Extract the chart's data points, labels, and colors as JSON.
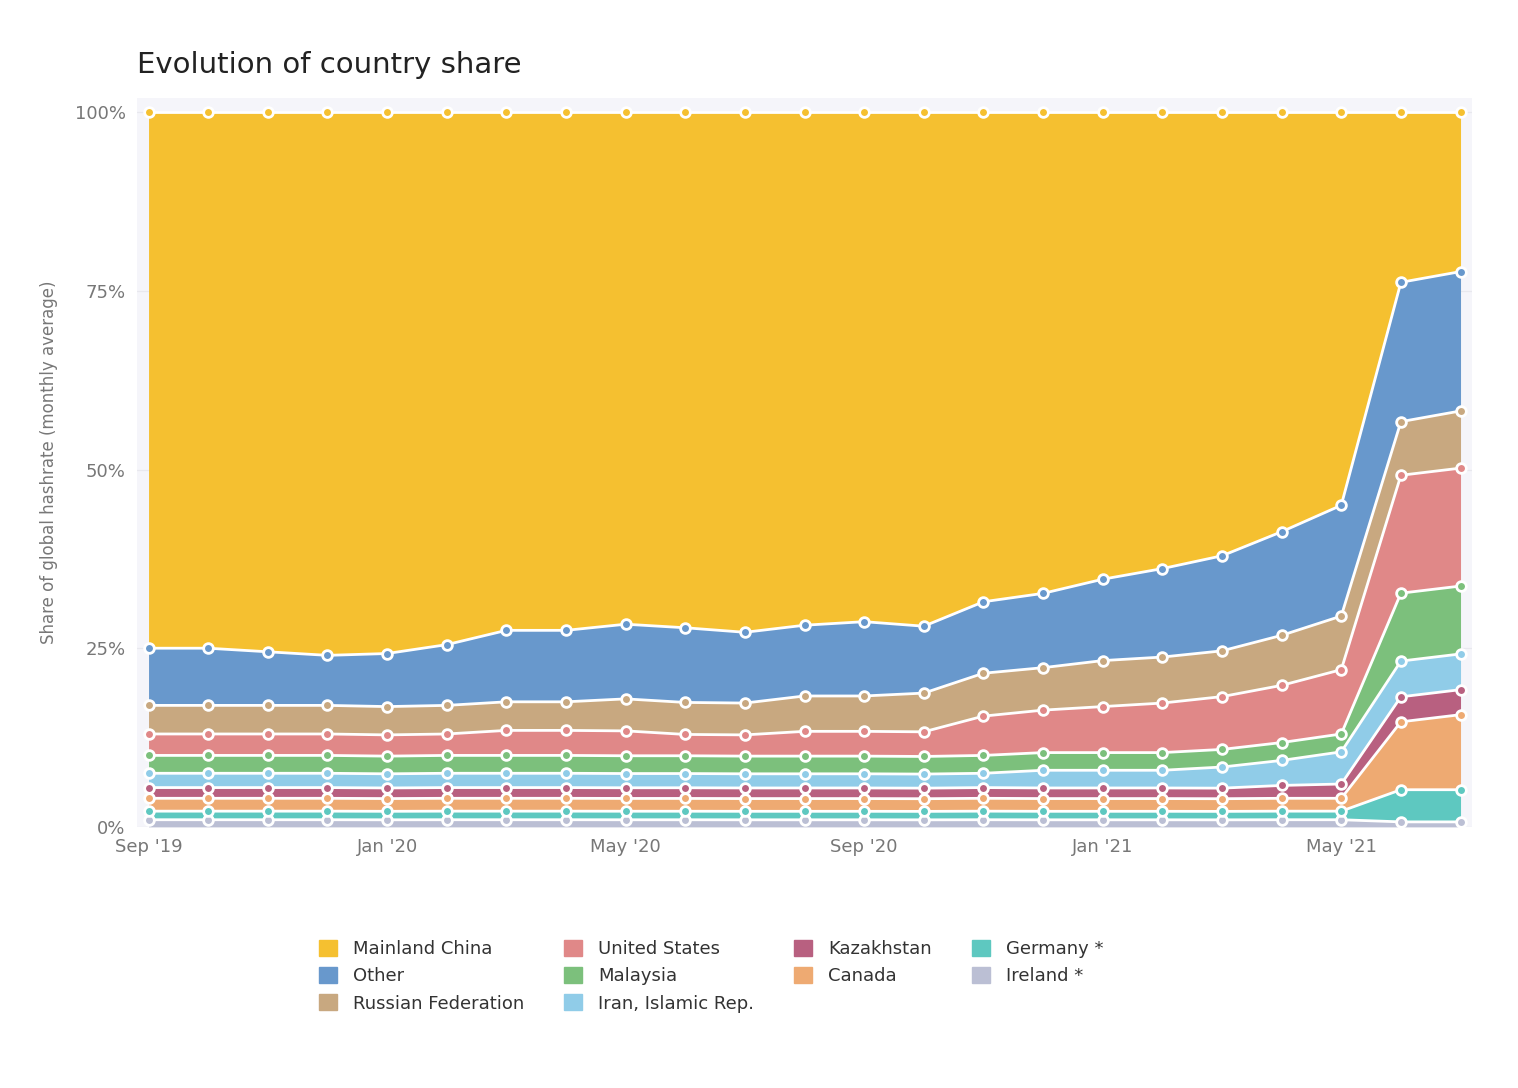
{
  "title": "Evolution of country share",
  "ylabel": "Share of global hashrate (monthly average)",
  "bg_color": "#ffffff",
  "plot_bg_color": "#f5f5fa",
  "x_tick_labels": [
    "Sep '19",
    "Jan '20",
    "May '20",
    "Sep '20",
    "Jan '21",
    "May '21"
  ],
  "x_tick_positions": [
    0,
    4,
    8,
    12,
    16,
    20
  ],
  "n_points": 23,
  "stack_order": [
    "Ireland *",
    "Germany *",
    "Canada",
    "Kazakhstan",
    "Iran, Islamic Rep.",
    "Malaysia",
    "United States",
    "Russian Federation",
    "Other",
    "Mainland China"
  ],
  "series": {
    "Ireland *": [
      1.0,
      1.0,
      1.0,
      1.0,
      1.0,
      1.0,
      1.0,
      1.0,
      1.0,
      1.0,
      1.0,
      1.0,
      1.0,
      1.0,
      1.0,
      1.0,
      1.0,
      1.0,
      1.0,
      1.0,
      1.0,
      0.7,
      0.7
    ],
    "Germany *": [
      1.2,
      1.2,
      1.2,
      1.2,
      1.2,
      1.2,
      1.2,
      1.2,
      1.2,
      1.2,
      1.2,
      1.2,
      1.2,
      1.2,
      1.2,
      1.2,
      1.2,
      1.2,
      1.2,
      1.2,
      1.2,
      4.5,
      4.5
    ],
    "Canada": [
      1.8,
      1.8,
      1.8,
      1.8,
      1.8,
      1.8,
      1.8,
      1.8,
      1.8,
      1.8,
      1.8,
      1.8,
      1.8,
      1.8,
      1.8,
      1.8,
      1.8,
      1.8,
      1.8,
      1.8,
      1.8,
      9.5,
      10.5
    ],
    "Kazakhstan": [
      1.5,
      1.5,
      1.5,
      1.5,
      1.5,
      1.5,
      1.5,
      1.5,
      1.5,
      1.5,
      1.5,
      1.5,
      1.5,
      1.5,
      1.5,
      1.5,
      1.5,
      1.5,
      1.5,
      1.8,
      2.0,
      3.5,
      3.5
    ],
    "Iran, Islamic Rep.": [
      2.0,
      2.0,
      2.0,
      2.0,
      2.0,
      2.0,
      2.0,
      2.0,
      2.0,
      2.0,
      2.0,
      2.0,
      2.0,
      2.0,
      2.0,
      2.5,
      2.5,
      2.5,
      3.0,
      3.5,
      4.5,
      5.0,
      5.0
    ],
    "Malaysia": [
      2.5,
      2.5,
      2.5,
      2.5,
      2.5,
      2.5,
      2.5,
      2.5,
      2.5,
      2.5,
      2.5,
      2.5,
      2.5,
      2.5,
      2.5,
      2.5,
      2.5,
      2.5,
      2.5,
      2.5,
      2.5,
      9.5,
      9.5
    ],
    "United States": [
      3.0,
      3.0,
      3.0,
      3.0,
      3.0,
      3.0,
      3.5,
      3.5,
      3.5,
      3.0,
      3.0,
      3.5,
      3.5,
      3.5,
      5.5,
      6.0,
      6.5,
      7.0,
      7.5,
      8.0,
      9.0,
      16.5,
      16.5
    ],
    "Russian Federation": [
      4.0,
      4.0,
      4.0,
      4.0,
      4.0,
      4.0,
      4.0,
      4.0,
      4.5,
      4.5,
      4.5,
      5.0,
      5.0,
      5.5,
      6.0,
      6.0,
      6.5,
      6.5,
      6.5,
      7.0,
      7.5,
      7.5,
      8.0
    ],
    "Other": [
      8.0,
      8.0,
      7.5,
      7.0,
      7.5,
      8.5,
      10.0,
      10.0,
      10.5,
      10.5,
      10.0,
      10.0,
      10.5,
      9.5,
      10.0,
      10.5,
      11.5,
      12.5,
      13.5,
      14.5,
      15.5,
      19.5,
      19.5
    ],
    "Mainland China": [
      75.0,
      75.0,
      75.5,
      76.0,
      76.5,
      74.5,
      72.5,
      72.5,
      72.0,
      72.5,
      73.5,
      72.5,
      72.0,
      73.0,
      68.5,
      68.0,
      66.0,
      64.5,
      63.0,
      58.7,
      55.0,
      23.8,
      22.3
    ]
  },
  "colors": {
    "Ireland *": "#bbbfd4",
    "Germany *": "#5ec8c0",
    "Canada": "#eeaa72",
    "Kazakhstan": "#b86080",
    "Iran, Islamic Rep.": "#90cce8",
    "Malaysia": "#7cc07c",
    "United States": "#e08888",
    "Russian Federation": "#c8a880",
    "Other": "#6898cc",
    "Mainland China": "#f5c030"
  },
  "legend_order": [
    "Mainland China",
    "Other",
    "Russian Federation",
    "United States",
    "Malaysia",
    "Iran, Islamic Rep.",
    "Kazakhstan",
    "Canada",
    "Germany *",
    "Ireland *"
  ],
  "ytick_values": [
    0,
    25,
    50,
    75,
    100
  ],
  "ytick_labels": [
    "0%",
    "25%",
    "50%",
    "75%",
    "100%"
  ]
}
